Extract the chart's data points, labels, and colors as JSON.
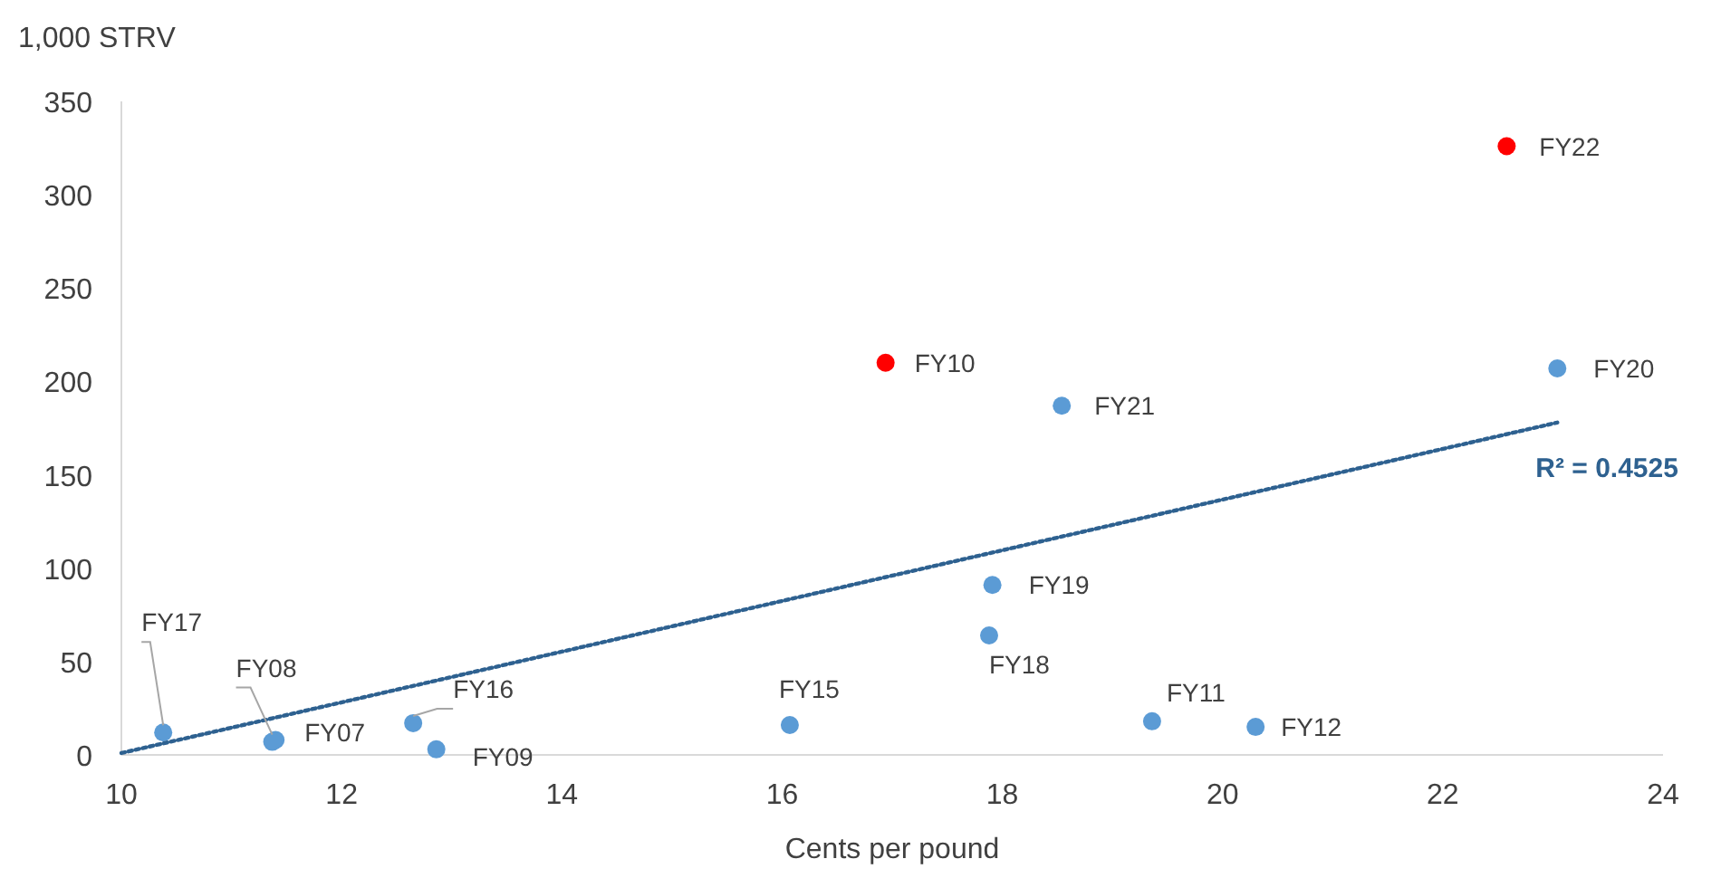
{
  "chart_data": {
    "type": "scatter",
    "xlabel": "Cents per pound",
    "ylabel": "1,000 STRV",
    "xlim": [
      10,
      24
    ],
    "xticks": [
      10,
      12,
      14,
      16,
      18,
      20,
      22,
      24
    ],
    "ylim": [
      0,
      350
    ],
    "yticks": [
      0,
      50,
      100,
      150,
      200,
      250,
      300,
      350
    ],
    "grid": false,
    "series": [
      {
        "marker": "circle",
        "x": [
          11.4,
          11.37,
          12.86,
          16.94,
          19.36,
          20.3,
          16.07,
          12.65,
          10.38,
          17.88,
          17.91,
          23.04,
          18.54,
          22.58
        ],
        "values": [
          8,
          7,
          3,
          210,
          18,
          15,
          16,
          17,
          12,
          64,
          91,
          207,
          187,
          326
        ],
        "colors": [
          "#5b9bd5",
          "#5b9bd5",
          "#5b9bd5",
          "#ff0000",
          "#5b9bd5",
          "#5b9bd5",
          "#5b9bd5",
          "#5b9bd5",
          "#5b9bd5",
          "#5b9bd5",
          "#5b9bd5",
          "#5b9bd5",
          "#5b9bd5",
          "#ff0000"
        ]
      },
      {
        "type": "line",
        "x": [
          10,
          23.04
        ],
        "values": [
          1,
          178
        ],
        "color": "#2e6190",
        "line_style": "dotted"
      }
    ],
    "annotations": [
      {
        "text": "FY07",
        "x": 11.4,
        "y": 8
      },
      {
        "text": "FY08",
        "x": 11.37,
        "y": 7
      },
      {
        "text": "FY09",
        "x": 12.86,
        "y": 3
      },
      {
        "text": "FY10",
        "x": 16.94,
        "y": 210
      },
      {
        "text": "FY11",
        "x": 19.36,
        "y": 18
      },
      {
        "text": "FY12",
        "x": 20.3,
        "y": 15
      },
      {
        "text": "FY15",
        "x": 16.07,
        "y": 16
      },
      {
        "text": "FY16",
        "x": 12.65,
        "y": 17
      },
      {
        "text": "FY17",
        "x": 10.38,
        "y": 12
      },
      {
        "text": "FY18",
        "x": 17.88,
        "y": 64
      },
      {
        "text": "FY19",
        "x": 17.91,
        "y": 91
      },
      {
        "text": "FY20",
        "x": 23.04,
        "y": 207
      },
      {
        "text": "FY21",
        "x": 18.54,
        "y": 187
      },
      {
        "text": "FY22",
        "x": 22.58,
        "y": 326
      },
      "R² = 0.4525"
    ]
  }
}
